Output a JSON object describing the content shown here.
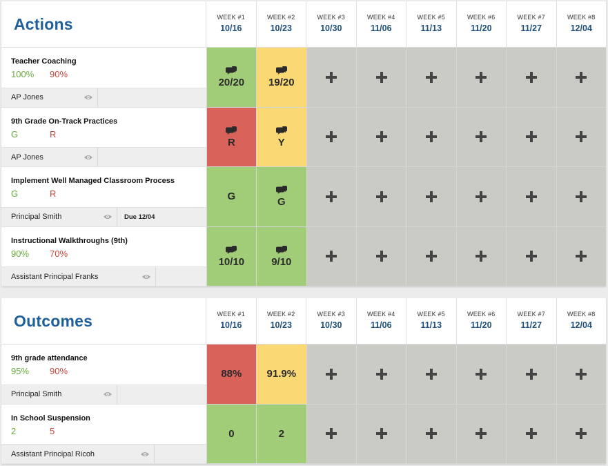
{
  "weeks": [
    {
      "label": "WEEK #1",
      "date": "10/16"
    },
    {
      "label": "WEEK #2",
      "date": "10/23"
    },
    {
      "label": "WEEK #3",
      "date": "10/30"
    },
    {
      "label": "WEEK #4",
      "date": "11/06"
    },
    {
      "label": "WEEK #5",
      "date": "11/13"
    },
    {
      "label": "WEEK #6",
      "date": "11/20"
    },
    {
      "label": "WEEK #7",
      "date": "11/27"
    },
    {
      "label": "WEEK #8",
      "date": "12/04"
    }
  ],
  "colors": {
    "green": "#a2cd78",
    "yellow": "#fad873",
    "red": "#d9625a",
    "empty": "#c9cbc4",
    "title": "#1f5f9c"
  },
  "actions": {
    "title": "Actions",
    "rows": [
      {
        "name": "Teacher Coaching",
        "target": "100%",
        "threshold": "90%",
        "owner": "AP Jones",
        "owner_width": 140,
        "due": "",
        "cells": [
          {
            "value": "20/20",
            "status": "green",
            "comment": true
          },
          {
            "value": "19/20",
            "status": "yellow",
            "comment": true
          }
        ]
      },
      {
        "name": "9th Grade On-Track Practices",
        "target": "G",
        "threshold": "R",
        "owner": "AP Jones",
        "owner_width": 140,
        "due": "",
        "cells": [
          {
            "value": "R",
            "status": "red",
            "comment": true
          },
          {
            "value": "Y",
            "status": "yellow",
            "comment": true
          }
        ]
      },
      {
        "name": "Implement Well Managed Classroom Process",
        "target": "G",
        "threshold": "R",
        "owner": "Principal Smith",
        "owner_width": 168,
        "due": "Due 12/04",
        "cells": [
          {
            "value": "G",
            "status": "green",
            "comment": false
          },
          {
            "value": "G",
            "status": "green",
            "comment": true
          }
        ]
      },
      {
        "name": "Instructional Walkthroughs (9th)",
        "target": "90%",
        "threshold": "70%",
        "owner": "Assistant Principal Franks",
        "owner_width": 224,
        "due": "",
        "cells": [
          {
            "value": "10/10",
            "status": "green",
            "comment": true
          },
          {
            "value": "9/10",
            "status": "green",
            "comment": true
          }
        ]
      }
    ]
  },
  "outcomes": {
    "title": "Outcomes",
    "rows": [
      {
        "name": "9th grade attendance",
        "target": "95%",
        "threshold": "90%",
        "owner": "Principal Smith",
        "owner_width": 168,
        "due": "",
        "cells": [
          {
            "value": "88%",
            "status": "red",
            "comment": false
          },
          {
            "value": "91.9%",
            "status": "yellow",
            "comment": false
          }
        ]
      },
      {
        "name": "In School Suspension",
        "target": "2",
        "threshold": "5",
        "owner": "Assistant Principal Ricoh",
        "owner_width": 222,
        "due": "",
        "cells": [
          {
            "value": "0",
            "status": "green",
            "comment": false
          },
          {
            "value": "2",
            "status": "green",
            "comment": false
          }
        ]
      }
    ]
  }
}
